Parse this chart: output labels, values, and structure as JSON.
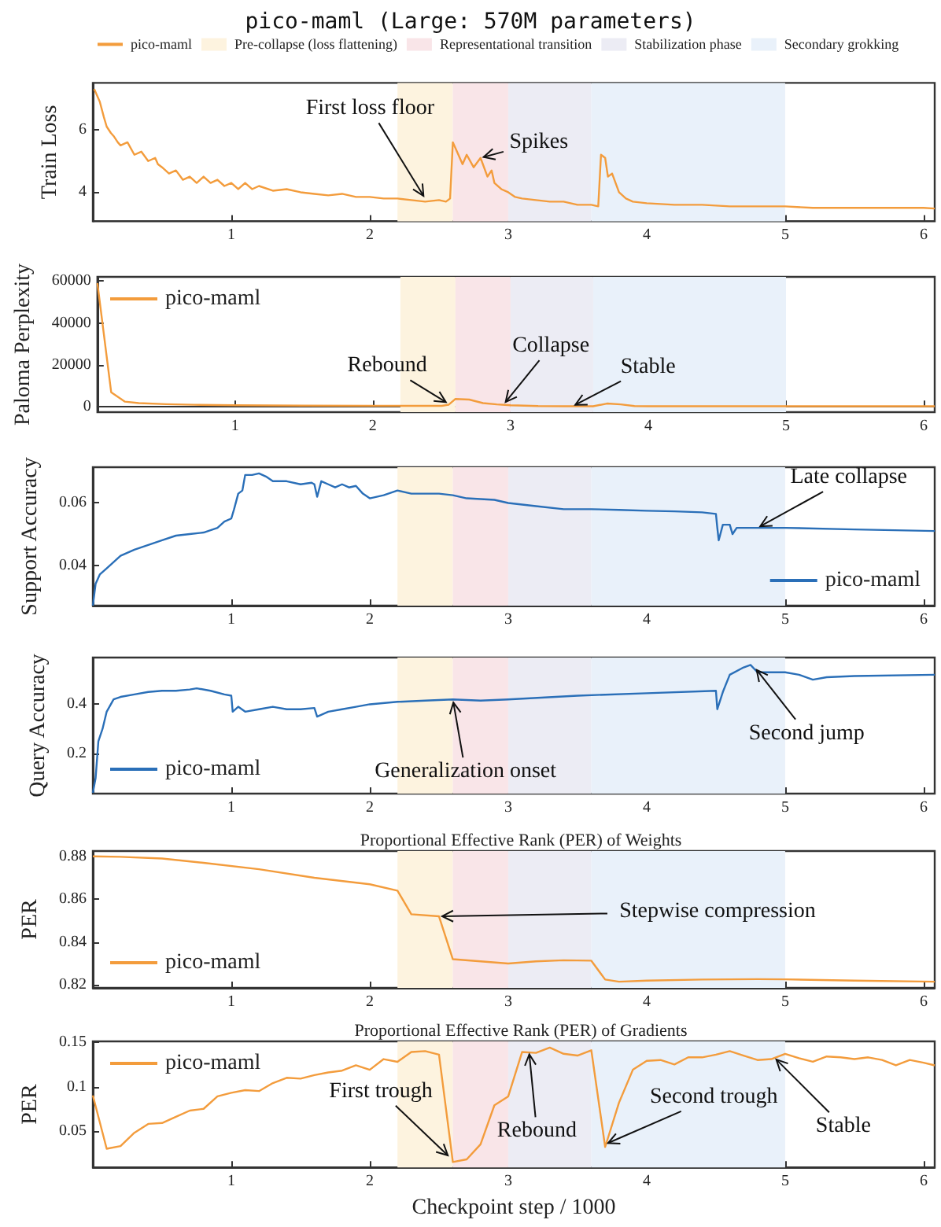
{
  "chart_data": [
    {
      "type": "line",
      "title": "pico-maml (Large: 570M parameters)",
      "ylabel": "Train Loss",
      "legend": "top",
      "marker": "none",
      "xlim": [
        0,
        6.08
      ],
      "xticks": [
        1,
        2,
        3,
        4,
        5,
        6
      ],
      "ylim": [
        3.07,
        7.5
      ],
      "yticks": [
        4,
        6
      ],
      "series": [
        {
          "name": "pico-maml",
          "color": "#f39c3c",
          "x": [
            0.01,
            0.03,
            0.05,
            0.08,
            0.1,
            0.13,
            0.15,
            0.18,
            0.2,
            0.25,
            0.3,
            0.35,
            0.4,
            0.45,
            0.47,
            0.5,
            0.55,
            0.6,
            0.65,
            0.7,
            0.75,
            0.8,
            0.85,
            0.9,
            0.95,
            1.0,
            1.05,
            1.1,
            1.15,
            1.2,
            1.3,
            1.4,
            1.5,
            1.6,
            1.7,
            1.8,
            1.9,
            2.0,
            2.1,
            2.2,
            2.3,
            2.4,
            2.5,
            2.55,
            2.58,
            2.6,
            2.63,
            2.67,
            2.7,
            2.75,
            2.8,
            2.85,
            2.88,
            2.9,
            2.95,
            3.0,
            3.05,
            3.1,
            3.2,
            3.3,
            3.4,
            3.5,
            3.6,
            3.65,
            3.67,
            3.7,
            3.72,
            3.75,
            3.8,
            3.85,
            3.9,
            4.0,
            4.2,
            4.4,
            4.6,
            4.8,
            5.0,
            5.2,
            5.4,
            5.6,
            5.8,
            6.0,
            6.08
          ],
          "values": [
            7.3,
            7.1,
            6.9,
            6.4,
            6.1,
            5.9,
            5.8,
            5.6,
            5.5,
            5.6,
            5.2,
            5.3,
            5.0,
            5.1,
            4.9,
            4.8,
            4.6,
            4.7,
            4.4,
            4.5,
            4.3,
            4.5,
            4.3,
            4.4,
            4.2,
            4.3,
            4.1,
            4.3,
            4.1,
            4.2,
            4.05,
            4.1,
            4.0,
            3.95,
            3.9,
            3.95,
            3.85,
            3.85,
            3.8,
            3.8,
            3.75,
            3.7,
            3.75,
            3.7,
            3.8,
            5.6,
            5.3,
            4.9,
            5.2,
            4.8,
            5.1,
            4.5,
            4.7,
            4.3,
            4.1,
            4.0,
            3.85,
            3.8,
            3.75,
            3.7,
            3.7,
            3.6,
            3.6,
            3.55,
            5.2,
            5.1,
            4.5,
            4.6,
            4.0,
            3.8,
            3.7,
            3.65,
            3.6,
            3.6,
            3.55,
            3.55,
            3.55,
            3.5,
            3.5,
            3.5,
            3.5,
            3.5,
            3.48
          ]
        }
      ],
      "bands": [
        {
          "axis": "x",
          "from": 2.2,
          "to": 2.6,
          "label": "Pre-collapse (loss flattening)",
          "color": "#fdf3df"
        },
        {
          "axis": "x",
          "from": 2.6,
          "to": 3.0,
          "label": "Representational transition",
          "color": "#f9e5e8"
        },
        {
          "axis": "x",
          "from": 3.0,
          "to": 3.6,
          "label": "Stabilization phase",
          "color": "#ececf4"
        },
        {
          "axis": "x",
          "from": 3.6,
          "to": 5.0,
          "label": "Secondary grokking",
          "color": "#e9f1fa"
        }
      ],
      "annotations": [
        {
          "text": "First loss floor",
          "x": 2.4,
          "y": 3.8
        },
        {
          "text": "Spikes",
          "x": 2.8,
          "y": 5.1
        }
      ]
    },
    {
      "type": "line",
      "ylabel": "Paloma Perplexity",
      "legend": "top left",
      "marker": "none",
      "xlim": [
        0,
        6.08
      ],
      "xticks": [
        1,
        2,
        3,
        4,
        5,
        6
      ],
      "ylim": [
        -2500,
        62000
      ],
      "yticks": [
        0,
        20000,
        40000,
        60000
      ],
      "series": [
        {
          "name": "pico-maml",
          "color": "#f39c3c",
          "x": [
            0,
            0.1,
            0.2,
            0.3,
            0.5,
            0.7,
            1.0,
            1.5,
            2.0,
            2.5,
            2.55,
            2.6,
            2.7,
            2.8,
            2.9,
            3.0,
            3.2,
            3.4,
            3.6,
            3.7,
            3.8,
            3.9,
            4.0,
            5.0,
            6.08
          ],
          "values": [
            59000,
            7000,
            2500,
            1800,
            1300,
            1000,
            800,
            600,
            500,
            500,
            1000,
            3800,
            3500,
            1800,
            1200,
            800,
            400,
            300,
            300,
            1600,
            1200,
            400,
            300,
            300,
            300
          ]
        }
      ],
      "bands": [
        {
          "axis": "x",
          "from": 2.2,
          "to": 2.6,
          "color": "#fdf3df"
        },
        {
          "axis": "x",
          "from": 2.6,
          "to": 3.0,
          "color": "#f9e5e8"
        },
        {
          "axis": "x",
          "from": 3.0,
          "to": 3.6,
          "color": "#ececf4"
        },
        {
          "axis": "x",
          "from": 3.6,
          "to": 5.0,
          "color": "#e9f1fa"
        }
      ],
      "annotations": [
        {
          "text": "Rebound",
          "x": 2.55,
          "y": 1500
        },
        {
          "text": "Collapse",
          "x": 2.95,
          "y": 1200
        },
        {
          "text": "Stable",
          "x": 3.45,
          "y": 300
        }
      ]
    },
    {
      "type": "line",
      "ylabel": "Support Accuracy",
      "legend": "bottom right",
      "marker": "none",
      "xlim": [
        0,
        6.08
      ],
      "xticks": [
        1,
        2,
        3,
        4,
        5,
        6
      ],
      "ylim": [
        0.027,
        0.0715
      ],
      "yticks": [
        0.04,
        0.06
      ],
      "series": [
        {
          "name": "pico-maml",
          "color": "#2a6fb8",
          "x": [
            0,
            0.02,
            0.05,
            0.1,
            0.2,
            0.3,
            0.4,
            0.5,
            0.6,
            0.7,
            0.8,
            0.9,
            0.95,
            1.0,
            1.02,
            1.05,
            1.08,
            1.1,
            1.15,
            1.2,
            1.25,
            1.3,
            1.4,
            1.5,
            1.58,
            1.6,
            1.62,
            1.65,
            1.7,
            1.75,
            1.8,
            1.85,
            1.9,
            1.95,
            2.0,
            2.1,
            2.2,
            2.3,
            2.5,
            2.6,
            2.7,
            2.9,
            3.0,
            3.2,
            3.4,
            3.6,
            3.8,
            4.0,
            4.2,
            4.4,
            4.5,
            4.51,
            4.52,
            4.55,
            4.6,
            4.62,
            4.65,
            4.8,
            5.0,
            5.5,
            6.08
          ],
          "values": [
            0.027,
            0.034,
            0.037,
            0.039,
            0.043,
            0.045,
            0.0465,
            0.048,
            0.0495,
            0.05,
            0.0505,
            0.052,
            0.054,
            0.055,
            0.058,
            0.063,
            0.064,
            0.069,
            0.069,
            0.0695,
            0.0685,
            0.067,
            0.067,
            0.066,
            0.0665,
            0.066,
            0.062,
            0.067,
            0.066,
            0.065,
            0.066,
            0.065,
            0.0655,
            0.063,
            0.0615,
            0.0625,
            0.064,
            0.063,
            0.063,
            0.0625,
            0.0615,
            0.061,
            0.06,
            0.059,
            0.058,
            0.058,
            0.0578,
            0.0575,
            0.0573,
            0.057,
            0.0565,
            0.052,
            0.048,
            0.053,
            0.053,
            0.05,
            0.052,
            0.052,
            0.052,
            0.0515,
            0.051
          ]
        }
      ],
      "bands": [
        {
          "axis": "x",
          "from": 2.2,
          "to": 2.6,
          "color": "#fdf3df"
        },
        {
          "axis": "x",
          "from": 2.6,
          "to": 3.0,
          "color": "#f9e5e8"
        },
        {
          "axis": "x",
          "from": 3.0,
          "to": 3.6,
          "color": "#ececf4"
        },
        {
          "axis": "x",
          "from": 3.6,
          "to": 5.0,
          "color": "#e9f1fa"
        }
      ],
      "annotations": [
        {
          "text": "Late collapse",
          "x": 4.8,
          "y": 0.052
        }
      ]
    },
    {
      "type": "line",
      "ylabel": "Query Accuracy",
      "legend": "bottom left",
      "marker": "none",
      "xlim": [
        0,
        6.08
      ],
      "xticks": [
        1,
        2,
        3,
        4,
        5,
        6
      ],
      "ylim": [
        0.037,
        0.59
      ],
      "yticks": [
        0.2,
        0.4
      ],
      "series": [
        {
          "name": "pico-maml",
          "color": "#2a6fb8",
          "x": [
            0,
            0.02,
            0.04,
            0.07,
            0.1,
            0.15,
            0.2,
            0.3,
            0.4,
            0.5,
            0.6,
            0.7,
            0.75,
            0.85,
            0.95,
            1.0,
            1.01,
            1.05,
            1.1,
            1.2,
            1.3,
            1.4,
            1.5,
            1.6,
            1.62,
            1.7,
            1.8,
            1.9,
            2.0,
            2.2,
            2.4,
            2.6,
            2.8,
            3.0,
            3.5,
            4.0,
            4.5,
            4.51,
            4.55,
            4.6,
            4.7,
            4.75,
            4.8,
            4.9,
            5.0,
            5.1,
            5.2,
            5.3,
            5.5,
            6.08
          ],
          "values": [
            0.04,
            0.1,
            0.25,
            0.3,
            0.37,
            0.42,
            0.43,
            0.44,
            0.45,
            0.455,
            0.455,
            0.46,
            0.465,
            0.455,
            0.44,
            0.435,
            0.37,
            0.39,
            0.37,
            0.38,
            0.39,
            0.38,
            0.38,
            0.385,
            0.35,
            0.37,
            0.38,
            0.39,
            0.4,
            0.41,
            0.415,
            0.42,
            0.415,
            0.42,
            0.435,
            0.445,
            0.455,
            0.38,
            0.45,
            0.52,
            0.55,
            0.56,
            0.53,
            0.53,
            0.53,
            0.52,
            0.5,
            0.51,
            0.515,
            0.52
          ]
        }
      ],
      "bands": [
        {
          "axis": "x",
          "from": 2.2,
          "to": 2.6,
          "color": "#fdf3df"
        },
        {
          "axis": "x",
          "from": 2.6,
          "to": 3.0,
          "color": "#f9e5e8"
        },
        {
          "axis": "x",
          "from": 3.0,
          "to": 3.6,
          "color": "#ececf4"
        },
        {
          "axis": "x",
          "from": 3.6,
          "to": 5.0,
          "color": "#e9f1fa"
        }
      ],
      "annotations": [
        {
          "text": "Generalization onset",
          "x": 2.6,
          "y": 0.42
        },
        {
          "text": "Second jump",
          "x": 4.78,
          "y": 0.55
        }
      ]
    },
    {
      "type": "line",
      "title": "Proportional Effective Rank (PER) of Weights",
      "ylabel": "PER",
      "legend": "bottom left",
      "marker": "none",
      "xlim": [
        0,
        6.08
      ],
      "xticks": [
        1,
        2,
        3,
        4,
        5,
        6
      ],
      "ylim": [
        0.8186,
        0.8825
      ],
      "yticks": [
        0.82,
        0.84,
        0.86,
        0.88
      ],
      "series": [
        {
          "name": "pico-maml",
          "color": "#f39c3c",
          "x": [
            0,
            0.2,
            0.5,
            0.8,
            1.2,
            1.6,
            2.0,
            2.2,
            2.3,
            2.5,
            2.6,
            2.8,
            3.0,
            3.2,
            3.4,
            3.6,
            3.7,
            3.8,
            4.0,
            4.4,
            4.8,
            5.0,
            5.5,
            6.08
          ],
          "values": [
            0.88,
            0.8798,
            0.879,
            0.877,
            0.874,
            0.87,
            0.867,
            0.864,
            0.853,
            0.852,
            0.832,
            0.831,
            0.83,
            0.831,
            0.8315,
            0.8313,
            0.8225,
            0.8215,
            0.822,
            0.8225,
            0.8227,
            0.8226,
            0.822,
            0.8215
          ]
        }
      ],
      "bands": [
        {
          "axis": "x",
          "from": 2.2,
          "to": 2.6,
          "color": "#fdf3df"
        },
        {
          "axis": "x",
          "from": 2.6,
          "to": 3.0,
          "color": "#f9e5e8"
        },
        {
          "axis": "x",
          "from": 3.0,
          "to": 3.6,
          "color": "#ececf4"
        },
        {
          "axis": "x",
          "from": 3.6,
          "to": 5.0,
          "color": "#e9f1fa"
        }
      ],
      "annotations": [
        {
          "text": "Stepwise compression",
          "x": 2.5,
          "y": 0.852
        }
      ]
    },
    {
      "type": "line",
      "title": "Proportional Effective Rank (PER) of Gradients",
      "xlabel": "Checkpoint step / 1000",
      "ylabel": "PER",
      "legend": "top left",
      "marker": "none",
      "xlim": [
        0,
        6.08
      ],
      "xticks": [
        1,
        2,
        3,
        4,
        5,
        6
      ],
      "ylim": [
        0.009,
        0.151
      ],
      "yticks": [
        0.05,
        0.1,
        0.15
      ],
      "series": [
        {
          "name": "pico-maml",
          "color": "#f39c3c",
          "x": [
            0,
            0.1,
            0.2,
            0.3,
            0.4,
            0.5,
            0.6,
            0.7,
            0.8,
            0.9,
            1.0,
            1.1,
            1.2,
            1.3,
            1.4,
            1.5,
            1.6,
            1.7,
            1.8,
            1.9,
            2.0,
            2.1,
            2.2,
            2.3,
            2.4,
            2.5,
            2.6,
            2.7,
            2.8,
            2.9,
            3.0,
            3.1,
            3.2,
            3.3,
            3.4,
            3.5,
            3.6,
            3.7,
            3.8,
            3.9,
            4.0,
            4.1,
            4.2,
            4.3,
            4.4,
            4.5,
            4.6,
            4.7,
            4.8,
            4.9,
            5.0,
            5.1,
            5.2,
            5.3,
            5.4,
            5.5,
            5.6,
            5.7,
            5.8,
            5.9,
            6.0,
            6.08
          ],
          "values": [
            0.09,
            0.03,
            0.033,
            0.048,
            0.058,
            0.059,
            0.066,
            0.073,
            0.075,
            0.089,
            0.093,
            0.096,
            0.095,
            0.104,
            0.11,
            0.109,
            0.113,
            0.116,
            0.118,
            0.124,
            0.119,
            0.131,
            0.128,
            0.139,
            0.14,
            0.136,
            0.015,
            0.018,
            0.035,
            0.079,
            0.089,
            0.139,
            0.138,
            0.144,
            0.137,
            0.135,
            0.141,
            0.032,
            0.082,
            0.119,
            0.129,
            0.13,
            0.125,
            0.133,
            0.133,
            0.136,
            0.14,
            0.135,
            0.13,
            0.131,
            0.137,
            0.132,
            0.128,
            0.134,
            0.133,
            0.131,
            0.133,
            0.13,
            0.124,
            0.13,
            0.127,
            0.124
          ]
        }
      ],
      "bands": [
        {
          "axis": "x",
          "from": 2.2,
          "to": 2.6,
          "color": "#fdf3df"
        },
        {
          "axis": "x",
          "from": 2.6,
          "to": 3.0,
          "color": "#f9e5e8"
        },
        {
          "axis": "x",
          "from": 3.0,
          "to": 3.6,
          "color": "#ececf4"
        },
        {
          "axis": "x",
          "from": 3.6,
          "to": 5.0,
          "color": "#e9f1fa"
        }
      ],
      "annotations": [
        {
          "text": "First trough",
          "x": 2.58,
          "y": 0.02
        },
        {
          "text": "Rebound",
          "x": 3.15,
          "y": 0.14
        },
        {
          "text": "Second trough",
          "x": 3.7,
          "y": 0.035
        },
        {
          "text": "Stable",
          "x": 4.92,
          "y": 0.133
        }
      ]
    }
  ]
}
